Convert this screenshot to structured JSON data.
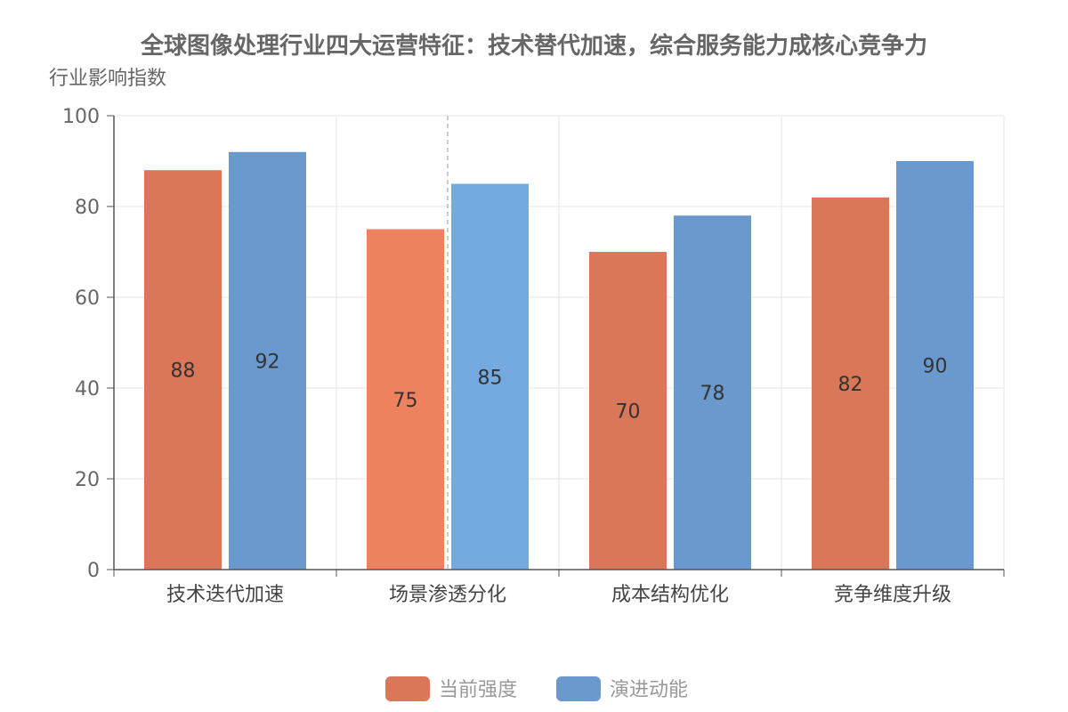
{
  "chart_data": {
    "type": "bar",
    "title": "全球图像处理行业四大运营特征：技术替代加速，综合服务能力成核心竞争力",
    "ylabel": "行业影响指数",
    "xlabel": "",
    "ylim": [
      0,
      100
    ],
    "yticks": [
      0,
      20,
      40,
      60,
      80,
      100
    ],
    "categories": [
      "技术迭代加速",
      "场景渗透分化",
      "成本结构优化",
      "竞争维度升级"
    ],
    "series": [
      {
        "name": "当前强度",
        "values": [
          88,
          75,
          70,
          82
        ],
        "color": "#d97758"
      },
      {
        "name": "演进动能",
        "values": [
          92,
          85,
          78,
          90
        ],
        "color": "#6a9acd"
      }
    ],
    "highlight_category_index": 1,
    "highlight_colors": [
      "#ef825e",
      "#75aae0"
    ],
    "grid": true,
    "legend_position": "bottom-center"
  }
}
